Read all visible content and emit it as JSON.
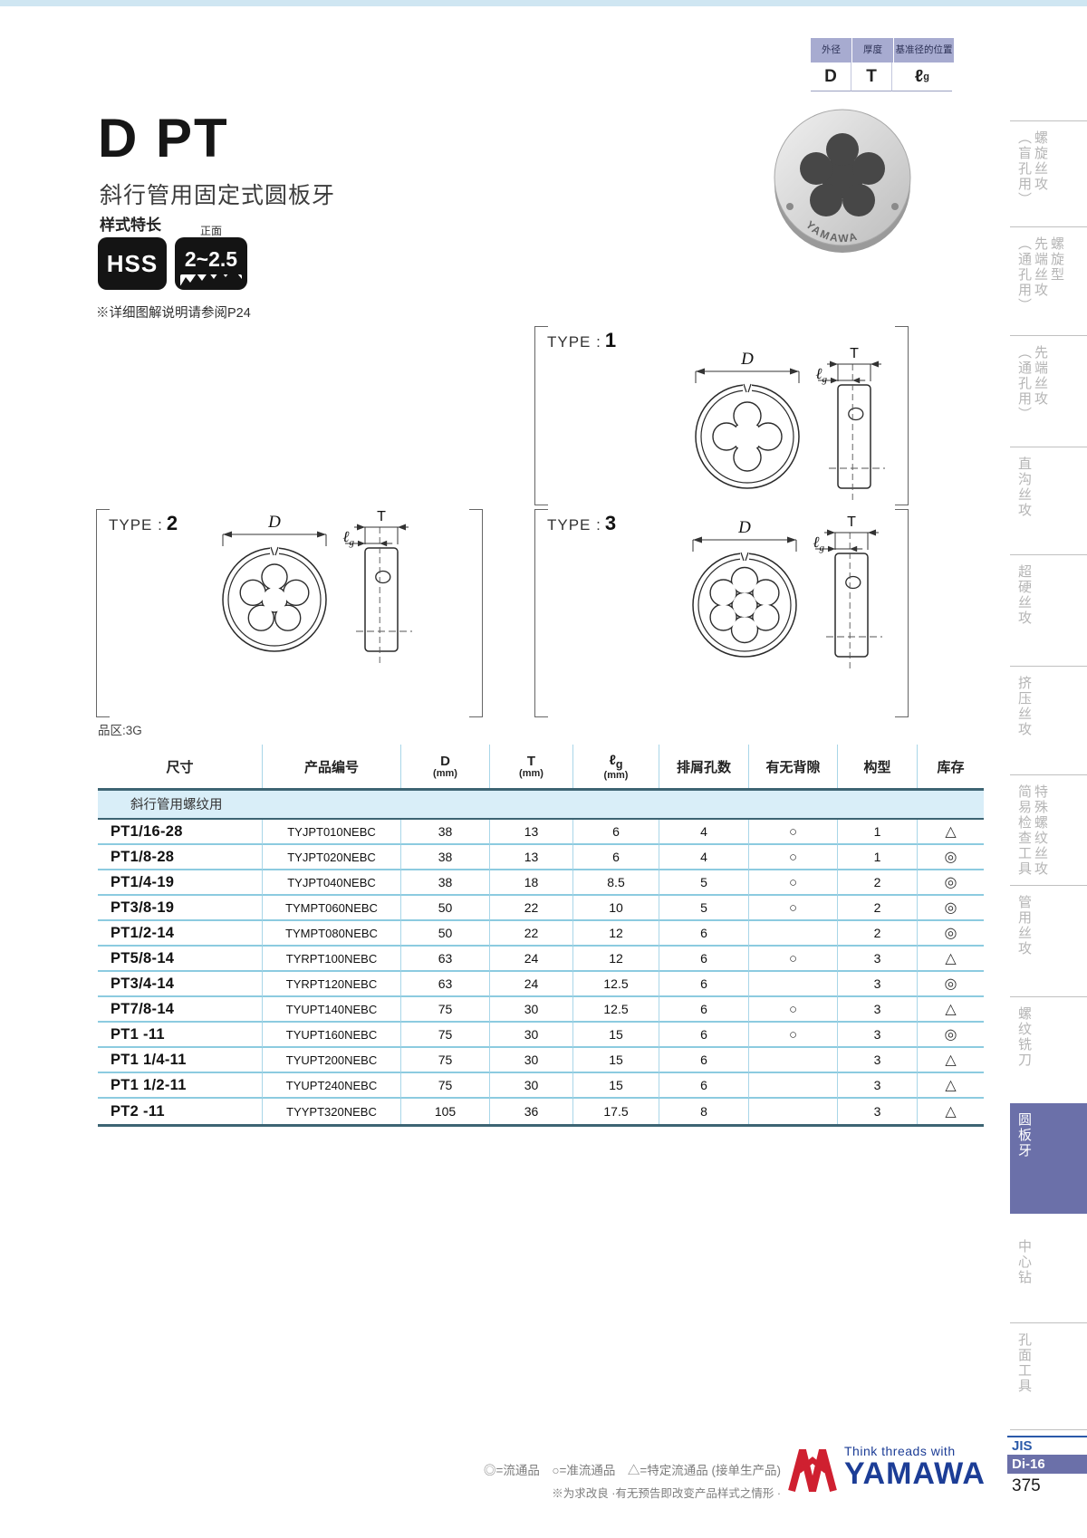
{
  "spec_box": {
    "headers": [
      "外径",
      "厚度",
      "基准径的位置"
    ],
    "values": [
      "D",
      "T",
      "ℓg"
    ]
  },
  "header": {
    "title": "D PT",
    "subtitle": "斜行管用固定式圆板牙",
    "feature_label": "样式特长",
    "hss_label": "HSS",
    "front_label": "正面",
    "chamfer_label": "2~2.5",
    "note": "※详细图解说明请参阅P24"
  },
  "product_photo": {
    "brand": "YAMAWA"
  },
  "dims": {
    "d": "D",
    "t": "T",
    "lg": "ℓg"
  },
  "types": [
    {
      "label": "TYPE :",
      "num": "1",
      "lobes": 4
    },
    {
      "label": "TYPE :",
      "num": "2",
      "lobes": 5
    },
    {
      "label": "TYPE :",
      "num": "3",
      "lobes": 6
    }
  ],
  "table": {
    "zone_label": "品区:3G",
    "headers": [
      {
        "label": "尺寸"
      },
      {
        "label": "产品编号"
      },
      {
        "label": "D",
        "sub": "(mm)"
      },
      {
        "label": "T",
        "sub": "(mm)"
      },
      {
        "label": "ℓg",
        "sub": "(mm)"
      },
      {
        "label": "排屑孔数"
      },
      {
        "label": "有无背隙"
      },
      {
        "label": "构型"
      },
      {
        "label": "库存"
      }
    ],
    "subheader": "斜行管用螺纹用",
    "rows": [
      [
        "PT1/16-28",
        "TYJPT010NEBC",
        "38",
        "13",
        "6",
        "4",
        "○",
        "1",
        "△"
      ],
      [
        "PT1/8-28",
        "TYJPT020NEBC",
        "38",
        "13",
        "6",
        "4",
        "○",
        "1",
        "◎"
      ],
      [
        "PT1/4-19",
        "TYJPT040NEBC",
        "38",
        "18",
        "8.5",
        "5",
        "○",
        "2",
        "◎"
      ],
      [
        "PT3/8-19",
        "TYMPT060NEBC",
        "50",
        "22",
        "10",
        "5",
        "○",
        "2",
        "◎"
      ],
      [
        "PT1/2-14",
        "TYMPT080NEBC",
        "50",
        "22",
        "12",
        "6",
        "",
        "2",
        "◎"
      ],
      [
        "PT5/8-14",
        "TYRPT100NEBC",
        "63",
        "24",
        "12",
        "6",
        "○",
        "3",
        "△"
      ],
      [
        "PT3/4-14",
        "TYRPT120NEBC",
        "63",
        "24",
        "12.5",
        "6",
        "",
        "3",
        "◎"
      ],
      [
        "PT7/8-14",
        "TYUPT140NEBC",
        "75",
        "30",
        "12.5",
        "6",
        "○",
        "3",
        "△"
      ],
      [
        "PT1 -11",
        "TYUPT160NEBC",
        "75",
        "30",
        "15",
        "6",
        "○",
        "3",
        "◎"
      ],
      [
        "PT1 1/4-11",
        "TYUPT200NEBC",
        "75",
        "30",
        "15",
        "6",
        "",
        "3",
        "△"
      ],
      [
        "PT1 1/2-11",
        "TYUPT240NEBC",
        "75",
        "30",
        "15",
        "6",
        "",
        "3",
        "△"
      ],
      [
        "PT2 -11",
        "TYYPT320NEBC",
        "105",
        "36",
        "17.5",
        "8",
        "",
        "3",
        "△"
      ]
    ]
  },
  "sidebar": {
    "items": [
      {
        "cols": [
          "螺旋丝攻",
          "（盲孔用）"
        ],
        "active": false
      },
      {
        "cols": [
          "螺旋型",
          "先端丝攻",
          "（通孔用）"
        ],
        "active": false
      },
      {
        "cols": [
          "先端丝攻",
          "（通孔用）"
        ],
        "active": false
      },
      {
        "cols": [
          "直沟丝攻"
        ],
        "active": false
      },
      {
        "cols": [
          "超硬丝攻"
        ],
        "active": false
      },
      {
        "cols": [
          "挤压丝攻"
        ],
        "active": false
      },
      {
        "cols": [
          "特殊螺纹丝攻",
          "简易检查工具"
        ],
        "active": false
      },
      {
        "cols": [
          "管用丝攻"
        ],
        "active": false
      },
      {
        "cols": [
          "螺纹铣刀"
        ],
        "active": false
      },
      {
        "cols": [
          "圆板牙"
        ],
        "active": true
      },
      {
        "cols": [
          "中心钻"
        ],
        "active": false
      },
      {
        "cols": [
          "孔面工具"
        ],
        "active": false
      }
    ]
  },
  "footer": {
    "legend_line1": "◎=流通品　○=准流通品　△=特定流通品 (接单生产品)",
    "legend_line2": "※为求改良 ·有无预告即改变产品样式之情形 ·",
    "think_text": "Think threads with",
    "brand": "YAMAWA",
    "jis": "JIS",
    "di": "Di-16",
    "page_number": "375"
  }
}
